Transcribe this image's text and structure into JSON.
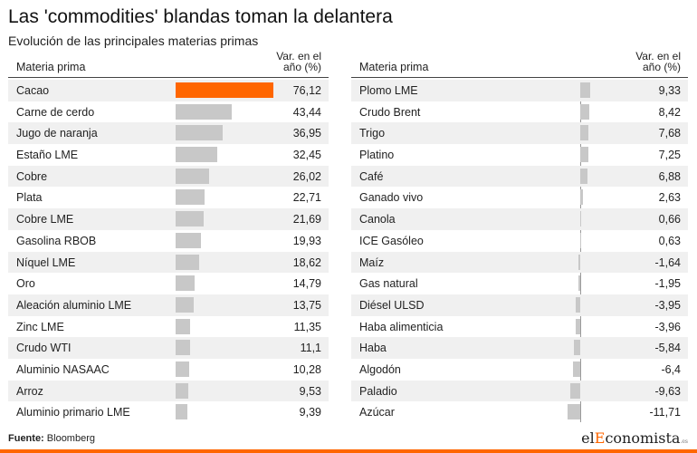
{
  "title": "Las 'commodities' blandas toman la delantera",
  "subtitle": "Evolución de las principales materias primas",
  "header": {
    "name": "Materia prima",
    "var": "Var. en el\naño (%)"
  },
  "source": {
    "label": "Fuente:",
    "text": " Bloomberg"
  },
  "logo": {
    "part1": "el",
    "part2": "E",
    "part3": "conomista",
    "suffix": ".es"
  },
  "colors": {
    "highlight": "#ff6600",
    "bar": "#c8c8c8",
    "row_alt": "#f0f0f0"
  },
  "chart_data": [
    {
      "type": "bar",
      "orientation": "horizontal",
      "title": "",
      "categories": [
        "Cacao",
        "Carne de cerdo",
        "Jugo de naranja",
        "Estaño LME",
        "Cobre",
        "Plata",
        "Cobre LME",
        "Gasolina RBOB",
        "Níquel LME",
        "Oro",
        "Aleación aluminio LME",
        "Zinc LME",
        "Crudo WTI",
        "Aluminio NASAAC",
        "Arroz",
        "Aluminio primario LME"
      ],
      "values": [
        76.12,
        43.44,
        36.95,
        32.45,
        26.02,
        22.71,
        21.69,
        19.93,
        18.62,
        14.79,
        13.75,
        11.35,
        11.1,
        10.28,
        9.53,
        9.39
      ],
      "labels": [
        "76,12",
        "43,44",
        "36,95",
        "32,45",
        "26,02",
        "22,71",
        "21,69",
        "19,93",
        "18,62",
        "14,79",
        "13,75",
        "11,35",
        "11,1",
        "10,28",
        "9,53",
        "9,39"
      ],
      "highlight_index": 0,
      "xlim": [
        0,
        76.12
      ]
    },
    {
      "type": "bar",
      "orientation": "horizontal",
      "title": "",
      "categories": [
        "Plomo LME",
        "Crudo Brent",
        "Trigo",
        "Platino",
        "Café",
        "Ganado vivo",
        "Canola",
        "ICE Gasóleo",
        "Maíz",
        "Gas natural",
        "Diésel ULSD",
        "Haba alimenticia",
        "Haba",
        "Algodón",
        "Paladio",
        "Azúcar"
      ],
      "values": [
        9.33,
        8.42,
        7.68,
        7.25,
        6.88,
        2.63,
        0.66,
        0.63,
        -1.64,
        -1.95,
        -3.95,
        -3.96,
        -5.84,
        -6.4,
        -9.63,
        -11.71
      ],
      "labels": [
        "9,33",
        "8,42",
        "7,68",
        "7,25",
        "6,88",
        "2,63",
        "0,66",
        "0,63",
        "-1,64",
        "-1,95",
        "-3,95",
        "-3,96",
        "-5,84",
        "-6,4",
        "-9,63",
        "-11,71"
      ],
      "xlim": [
        -11.71,
        9.33
      ]
    }
  ]
}
